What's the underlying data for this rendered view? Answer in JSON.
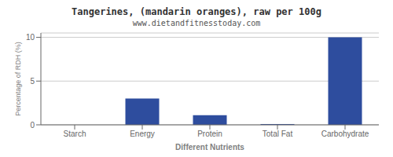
{
  "chart_data": {
    "type": "bar",
    "title": "Tangerines, (mandarin oranges), raw per 100g",
    "subtitle": "www.dietandfitnesstoday.com",
    "xlabel": "Different Nutrients",
    "ylabel": "Percentage of RDH (%)",
    "categories": [
      "Starch",
      "Energy",
      "Protein",
      "Total Fat",
      "Carbohydrate"
    ],
    "values": [
      0,
      3.0,
      1.1,
      0.1,
      10.0
    ],
    "color": "#2e4d9e",
    "ylim": [
      0,
      10.5
    ],
    "yticks": [
      0,
      5,
      10
    ],
    "grid": true
  }
}
